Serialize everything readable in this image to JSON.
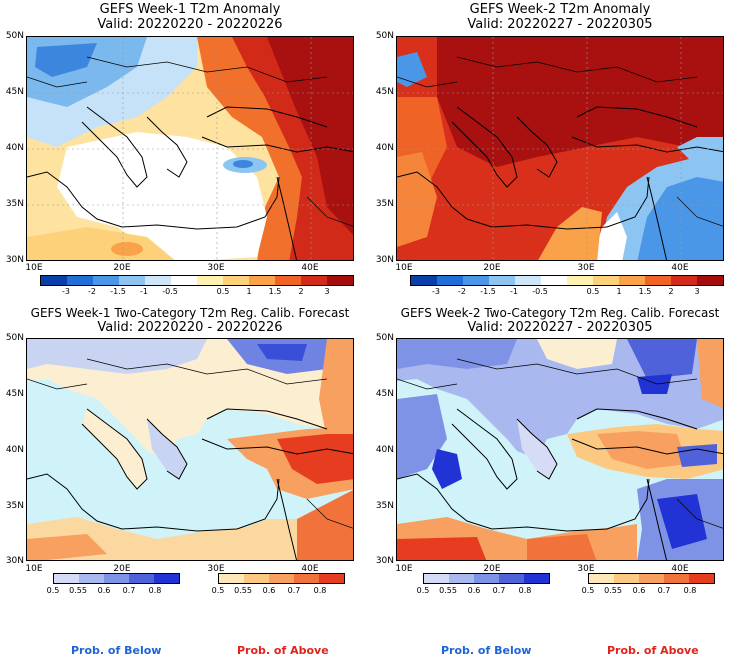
{
  "panels": {
    "tl": {
      "title": "GEFS Week-1 T2m Anomaly",
      "valid": "Valid: 20220220 - 20220226"
    },
    "tr": {
      "title": "GEFS Week-2 T2m Anomaly",
      "valid": "Valid: 20220227 - 20220305"
    },
    "bl": {
      "title": "GEFS Week-1 Two-Category T2m Reg. Calib. Forecast",
      "valid": "Valid: 20220220 - 20220226"
    },
    "br": {
      "title": "GEFS Week-2 Two-Category T2m Reg. Calib. Forecast",
      "valid": "Valid: 20220227 - 20220305"
    }
  },
  "axes": {
    "lat": [
      "50N",
      "45N",
      "40N",
      "35N",
      "30N"
    ],
    "lon": [
      "10E",
      "20E",
      "30E",
      "40E"
    ]
  },
  "anomaly_colorbar": {
    "labels": [
      "-3",
      "-2",
      "-1.5",
      "-1",
      "-0.5",
      "0.5",
      "1",
      "1.5",
      "2",
      "3"
    ],
    "colors": [
      "#0a3fa8",
      "#1f6fd6",
      "#4a97e8",
      "#8cc4f2",
      "#cfe6f8",
      "#ffffff",
      "#fff2b0",
      "#fdd17a",
      "#f9a24a",
      "#ef6327",
      "#d42a1a",
      "#a30d0d"
    ]
  },
  "prob_colorbars": {
    "below": {
      "labels": [
        "0.5",
        "0.55",
        "0.6",
        "0.7",
        "0.8"
      ],
      "colors": [
        "#d6dcf5",
        "#a9b8ee",
        "#7f93e6",
        "#4f62da",
        "#2233d6"
      ],
      "caption": "Prob. of Below",
      "caption_color": "#1e64d8"
    },
    "above": {
      "labels": [
        "0.5",
        "0.55",
        "0.6",
        "0.7",
        "0.8"
      ],
      "colors": [
        "#fde9b8",
        "#fbc981",
        "#f8a060",
        "#f2723c",
        "#e63c20"
      ],
      "caption": "Prob. of Above",
      "caption_color": "#e2231a"
    }
  },
  "colors": {
    "sea": "#cff3f8",
    "warm": "#b8110f",
    "cold": "#2b6fd6"
  }
}
